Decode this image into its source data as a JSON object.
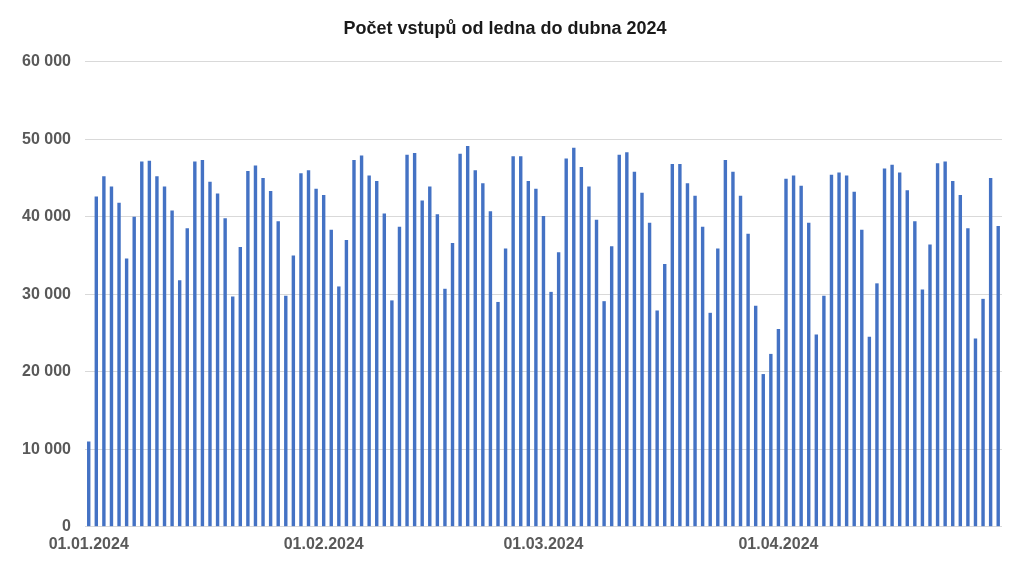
{
  "chart_data": {
    "type": "bar",
    "title": "Počet vstupů od ledna do dubna 2024",
    "categories": [
      "01.01.2024",
      null,
      null,
      null,
      null,
      null,
      null,
      null,
      null,
      null,
      null,
      null,
      null,
      null,
      null,
      null,
      null,
      null,
      null,
      null,
      null,
      null,
      null,
      null,
      null,
      null,
      null,
      null,
      null,
      null,
      null,
      "01.02.2024",
      null,
      null,
      null,
      null,
      null,
      null,
      null,
      null,
      null,
      null,
      null,
      null,
      null,
      null,
      null,
      null,
      null,
      null,
      null,
      null,
      null,
      null,
      null,
      null,
      null,
      null,
      null,
      null,
      "01.03.2024",
      null,
      null,
      null,
      null,
      null,
      null,
      null,
      null,
      null,
      null,
      null,
      null,
      null,
      null,
      null,
      null,
      null,
      null,
      null,
      null,
      null,
      null,
      null,
      null,
      null,
      null,
      null,
      null,
      null,
      null,
      "01.04.2024",
      null,
      null,
      null,
      null,
      null,
      null,
      null,
      null,
      null,
      null,
      null,
      null,
      null,
      null,
      null,
      null,
      null,
      null,
      null,
      null,
      null,
      null,
      null,
      null,
      null,
      null,
      null,
      null,
      null
    ],
    "values": [
      11000,
      42600,
      45200,
      43900,
      41800,
      34600,
      40000,
      47100,
      47200,
      45200,
      43900,
      40800,
      31800,
      38500,
      47100,
      47300,
      44500,
      43000,
      39800,
      29700,
      36100,
      45900,
      46600,
      45000,
      43300,
      39400,
      29800,
      35000,
      45600,
      46000,
      43600,
      42800,
      38300,
      31000,
      37000,
      47300,
      47900,
      45300,
      44600,
      40400,
      29200,
      38700,
      48000,
      48200,
      42100,
      43900,
      40300,
      30700,
      36600,
      48100,
      49100,
      46000,
      44300,
      40700,
      29000,
      35900,
      47800,
      47800,
      44600,
      43600,
      40100,
      30300,
      35400,
      47500,
      48900,
      46400,
      43900,
      39600,
      29100,
      36200,
      48000,
      48300,
      45800,
      43100,
      39200,
      27900,
      33900,
      46800,
      46800,
      44300,
      42700,
      38700,
      27600,
      35900,
      47300,
      45800,
      42700,
      37800,
      28500,
      19700,
      22300,
      25500,
      44900,
      45300,
      44000,
      39200,
      24800,
      29800,
      45400,
      45700,
      45300,
      43200,
      38300,
      24500,
      31400,
      46200,
      46700,
      45700,
      43400,
      39400,
      30600,
      36400,
      46900,
      47100,
      44600,
      42800,
      38500,
      24300,
      29400,
      45000,
      38800
    ],
    "color": "#4472c4",
    "ylim": [
      0,
      60000
    ],
    "yticks": [
      0,
      {
        "value": 10000,
        "label": "10 000"
      },
      {
        "value": 20000,
        "label": "20 000"
      },
      {
        "value": 30000,
        "label": "30 000"
      },
      {
        "value": 40000,
        "label": "40 000"
      },
      {
        "value": 50000,
        "label": "50 000"
      },
      {
        "value": 60000,
        "label": "60 000"
      }
    ],
    "grid": "y"
  }
}
